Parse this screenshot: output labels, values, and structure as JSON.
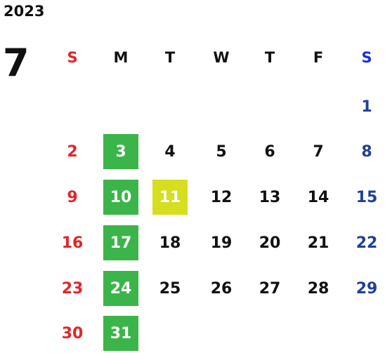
{
  "year": "2023",
  "month": "7",
  "weekdays": [
    "S",
    "M",
    "T",
    "W",
    "T",
    "F",
    "S"
  ],
  "weeks": [
    [
      null,
      null,
      null,
      null,
      null,
      null,
      {
        "day": 1
      }
    ],
    [
      {
        "day": 2
      },
      {
        "day": 3,
        "bg": "#3bb54a"
      },
      {
        "day": 4
      },
      {
        "day": 5
      },
      {
        "day": 6
      },
      {
        "day": 7
      },
      {
        "day": 8
      }
    ],
    [
      {
        "day": 9
      },
      {
        "day": 10,
        "bg": "#3bb54a"
      },
      {
        "day": 11,
        "bg": "#d5de1f"
      },
      {
        "day": 12
      },
      {
        "day": 13
      },
      {
        "day": 14
      },
      {
        "day": 15
      }
    ],
    [
      {
        "day": 16
      },
      {
        "day": 17,
        "bg": "#3bb54a"
      },
      {
        "day": 18
      },
      {
        "day": 19
      },
      {
        "day": 20
      },
      {
        "day": 21
      },
      {
        "day": 22
      }
    ],
    [
      {
        "day": 23
      },
      {
        "day": 24,
        "bg": "#3bb54a"
      },
      {
        "day": 25
      },
      {
        "day": 26
      },
      {
        "day": 27
      },
      {
        "day": 28
      },
      {
        "day": 29
      }
    ],
    [
      {
        "day": 30
      },
      {
        "day": 31,
        "bg": "#3bb54a"
      },
      null,
      null,
      null,
      null,
      null
    ]
  ]
}
